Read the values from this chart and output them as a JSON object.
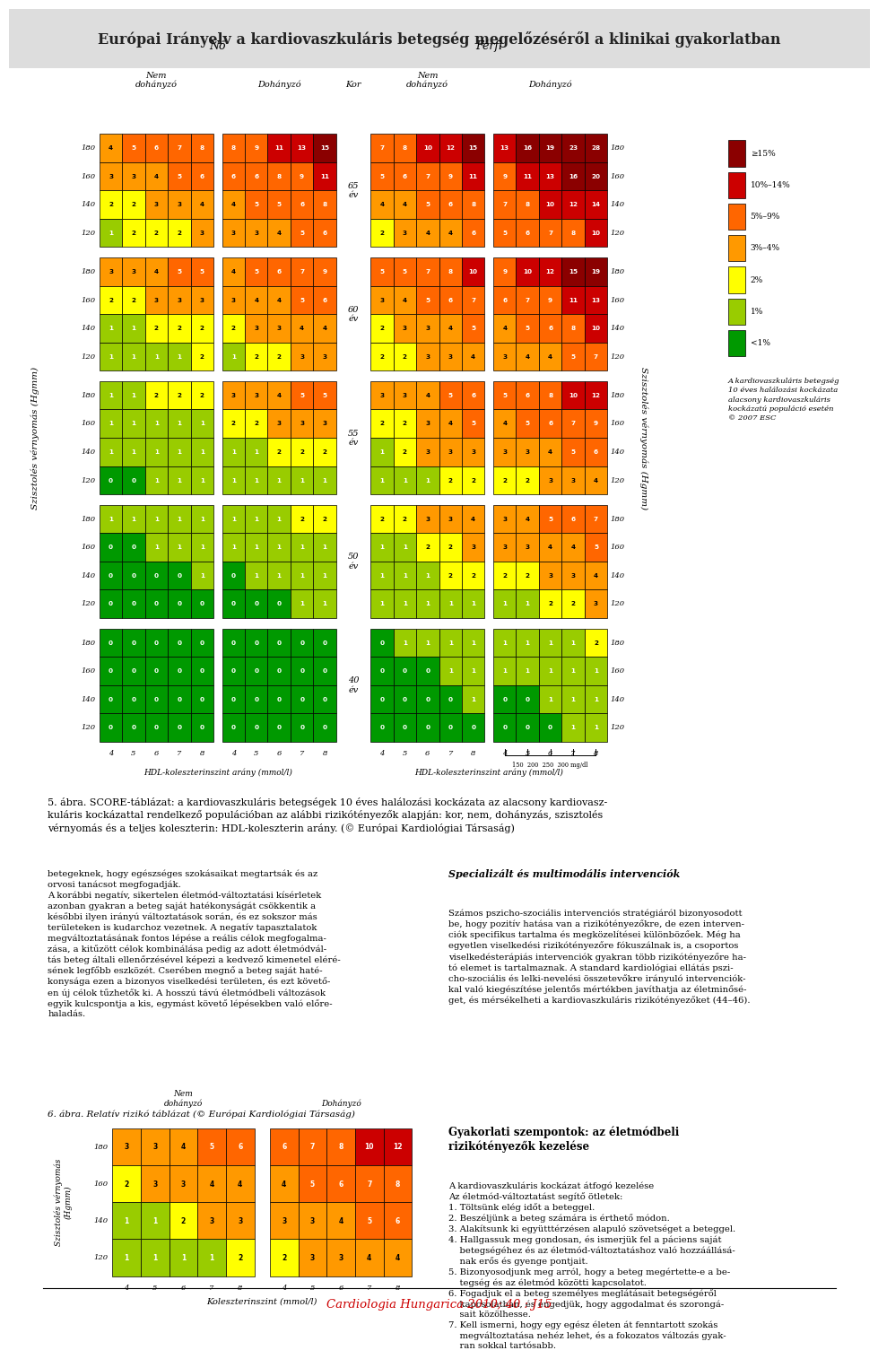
{
  "title": "Európai Irányelv a kardiovaszkuláris betegség megelőzéséről a klinikai gyakorlatban",
  "legend_items": [
    {
      "label": "≥15%",
      "color": "#8B0000"
    },
    {
      "label": "10%–14%",
      "color": "#CC0000"
    },
    {
      "label": "5%–9%",
      "color": "#FF6600"
    },
    {
      "label": "3%–4%",
      "color": "#FF9900"
    },
    {
      "label": "2%",
      "color": "#FFFF00"
    },
    {
      "label": "1%",
      "color": "#99CC00"
    },
    {
      "label": "<1%",
      "color": "#009900"
    }
  ],
  "legend_note": "A kardiovaszkuláris betegség\n10 éves halálozási kockázata\nalacsony kardiovaszkuláris\nkockázatú populáció esetén\n© 2007 ESC",
  "color_thresholds": [
    [
      15,
      "#8B0000"
    ],
    [
      10,
      "#CC0000"
    ],
    [
      5,
      "#FF6600"
    ],
    [
      3,
      "#FF9900"
    ],
    [
      2,
      "#FFFF00"
    ],
    [
      1,
      "#99CC00"
    ],
    [
      0,
      "#009900"
    ]
  ],
  "text_blocks": {
    "caption": "5. ábra. SCORE-táblázat: a kardiovaszkuláris betegségek 10 éves halálozási kockázata az alacsony kardiovasz-\nkuláris kockázattal rendelkező populációban az alábbi rizikótényezők alapján: kor, nem, dohányzás, szisztolés\nvérnyomás és a teljes koleszterin: HDL-koleszterin arány. (© Európai Kardiológiai Társaság)",
    "left_col": "betegeknek, hogy egészséges szokásaikat megtartsák és az\norvosi tanácsot megfogadják.\nA korábbi negatív, sikertelen életmód-változtatási kísérletek\nazonban gyakran a beteg saját hatékonyságát csökkentik a\nkésőbbi ilyen irányú változtatások során, és ez sokszor más\nterületeken is kudarchoz vezetnek. A negatív tapasztalatok\nmegváltoztatásának fontos lépése a reális célok megfogalma-\nzása, a kitűzött célok kombinálása pedig az adott életmódvál-\ntás beteg általi ellenőrzésével képezi a kedvező kimenetel eléré-\nsének legfőbb eszközét. Cserében megnő a beteg saját haté-\nkonysága ezen a bizonyos viselkedési területen, és ezt követő-\nen új célok tűzhetők ki. A hosszú távú életmódbeli változások\negyik kulcspontja a kis, egymást követő lépésekben való előre-\nhaladás.",
    "right_col_title": "Specializált és multimodális intervenciók",
    "right_col": "Számos pszicho-szociális intervenciós stratégiáról bizonyosodott\nbe, hogy pozitív hatása van a rizikótényezőkre, de ezen interven-\nciók specifikus tartalma és megközelítései különbözőek. Még ha\negyetlen viselkedési rizikótényezőre fókuszálnak is, a csoportos\nviselkedésterápiás intervenciók gyakran több rizikótényezőre ha-\ntó elemet is tartalmaznak. A standard kardiológiai ellátás pszi-\ncho-szociális és lelki-nevelési összetevőkre irányuló intervenciók-\nkal való kiegészítése jelentős mértékben javíthatja az életminősé-\nget, és mérsékelheti a kardiovaszkuláris rizikótényezőket (44–46).",
    "small_chart_title": "6. ábra. Relatív rizikó táblázat (© Európai Kardiológiai Társaság)",
    "small_chart_ylabel": "Szisztolés vérnyomás\n(Hgmm)",
    "small_chart_xlabel": "Koleszterinszint (mmol/l)",
    "bottom_section_title": "Gyakorlati szempontok: az életmódbeli\nrizikótényezők kezelése",
    "bottom_content": "A kardiovaszkuláris kockázat átfogó kezelése\nAz életmód-változtatást segítő ötletek:\n1. Töltsünk elég időt a beteggel.\n2. Beszéljünk a beteg számára is érthető módon.\n3. Alakítsunk ki együtttérzésen alapuló szövetséget a beteggel.\n4. Hallgassuk meg gondosan, és ismerjük fel a páciens saját\n    betegségéhez és az életmód-változtatáshoz való hozzáállásá-\n    nak erős és gyenge pontjait.\n5. Bizonyosodjunk meg arról, hogy a beteg megértette-e a be-\n    tegség és az életmód közötti kapcsolatot.\n6. Fogadjuk el a beteg személyes meglátásait betegségéről\n    kapcsolatban, és engedjük, hogy aggodalmat és szorongá-\n    sait közölhesse.\n7. Kell ismerni, hogy egy egész életen át fenntartott szokás\n    megváltoztatása nehéz lehet, és a fokozatos változás gyak-\n    ran sokkal tartósabb."
  }
}
